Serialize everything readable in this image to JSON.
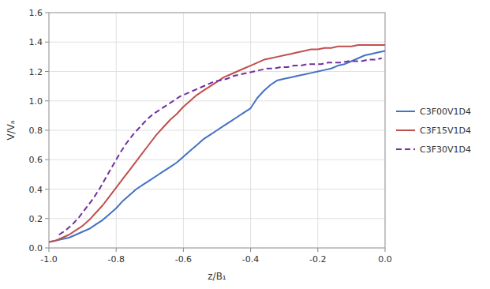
{
  "chart_data": {
    "type": "line",
    "xlabel": "z/B₁",
    "ylabel": "V/Vₐ",
    "xlim": [
      -1.0,
      0.0
    ],
    "ylim": [
      0.0,
      1.6
    ],
    "xticks": [
      {
        "value": -1.0,
        "label": "-1.0"
      },
      -0.8,
      -0.6,
      -0.4,
      -0.2,
      {
        "value": 0.0,
        "label": "0.0"
      }
    ],
    "yticks": [
      {
        "value": 0.0,
        "label": "0.0"
      },
      0.2,
      0.4,
      0.6,
      0.8,
      {
        "value": 1.0,
        "label": "1.0"
      },
      1.2,
      1.4,
      1.6
    ],
    "grid": true,
    "legend": "right",
    "series": [
      {
        "name": "C3F00V1D4",
        "color": "#4472C4",
        "line_style": "solid",
        "x": [
          -1.0,
          -0.98,
          -0.96,
          -0.94,
          -0.92,
          -0.9,
          -0.88,
          -0.86,
          -0.84,
          -0.82,
          -0.8,
          -0.78,
          -0.76,
          -0.74,
          -0.72,
          -0.7,
          -0.68,
          -0.66,
          -0.64,
          -0.62,
          -0.6,
          -0.58,
          -0.56,
          -0.54,
          -0.52,
          -0.5,
          -0.48,
          -0.46,
          -0.44,
          -0.42,
          -0.4,
          -0.38,
          -0.36,
          -0.34,
          -0.32,
          -0.3,
          -0.28,
          -0.26,
          -0.24,
          -0.22,
          -0.2,
          -0.18,
          -0.16,
          -0.14,
          -0.12,
          -0.1,
          -0.08,
          -0.06,
          -0.04,
          -0.02,
          0.0
        ],
        "values": [
          0.04,
          0.05,
          0.06,
          0.07,
          0.09,
          0.11,
          0.13,
          0.16,
          0.19,
          0.23,
          0.27,
          0.32,
          0.36,
          0.4,
          0.43,
          0.46,
          0.49,
          0.52,
          0.55,
          0.58,
          0.62,
          0.66,
          0.7,
          0.74,
          0.77,
          0.8,
          0.83,
          0.86,
          0.89,
          0.92,
          0.95,
          1.02,
          1.07,
          1.11,
          1.14,
          1.15,
          1.16,
          1.17,
          1.18,
          1.19,
          1.2,
          1.21,
          1.22,
          1.24,
          1.25,
          1.27,
          1.29,
          1.31,
          1.32,
          1.33,
          1.34
        ]
      },
      {
        "name": "C3F15V1D4",
        "color": "#C0504D",
        "line_style": "solid",
        "x": [
          -1.0,
          -0.98,
          -0.96,
          -0.94,
          -0.92,
          -0.9,
          -0.88,
          -0.86,
          -0.84,
          -0.82,
          -0.8,
          -0.78,
          -0.76,
          -0.74,
          -0.72,
          -0.7,
          -0.68,
          -0.66,
          -0.64,
          -0.62,
          -0.6,
          -0.58,
          -0.56,
          -0.54,
          -0.52,
          -0.5,
          -0.48,
          -0.46,
          -0.44,
          -0.42,
          -0.4,
          -0.38,
          -0.36,
          -0.34,
          -0.32,
          -0.3,
          -0.28,
          -0.26,
          -0.24,
          -0.22,
          -0.2,
          -0.18,
          -0.16,
          -0.14,
          -0.12,
          -0.1,
          -0.08,
          -0.06,
          -0.04,
          -0.02,
          0.0
        ],
        "values": [
          0.04,
          0.05,
          0.07,
          0.09,
          0.12,
          0.15,
          0.19,
          0.24,
          0.29,
          0.35,
          0.41,
          0.47,
          0.53,
          0.59,
          0.65,
          0.71,
          0.77,
          0.82,
          0.87,
          0.91,
          0.96,
          1.0,
          1.04,
          1.07,
          1.1,
          1.13,
          1.16,
          1.18,
          1.2,
          1.22,
          1.24,
          1.26,
          1.28,
          1.29,
          1.3,
          1.31,
          1.32,
          1.33,
          1.34,
          1.35,
          1.35,
          1.36,
          1.36,
          1.37,
          1.37,
          1.37,
          1.38,
          1.38,
          1.38,
          1.38,
          1.38
        ]
      },
      {
        "name": "C3F30V1D4",
        "color": "#7030A0",
        "line_style": "dashed",
        "x": [
          -0.97,
          -0.95,
          -0.93,
          -0.91,
          -0.89,
          -0.87,
          -0.85,
          -0.83,
          -0.81,
          -0.79,
          -0.77,
          -0.75,
          -0.73,
          -0.71,
          -0.69,
          -0.67,
          -0.65,
          -0.63,
          -0.61,
          -0.59,
          -0.57,
          -0.55,
          -0.53,
          -0.51,
          -0.49,
          -0.47,
          -0.45,
          -0.43,
          -0.41,
          -0.39,
          -0.37,
          -0.35,
          -0.33,
          -0.31,
          -0.29,
          -0.27,
          -0.25,
          -0.23,
          -0.21,
          -0.19,
          -0.17,
          -0.15,
          -0.13,
          -0.11,
          -0.09,
          -0.07,
          -0.05,
          -0.03,
          -0.01
        ],
        "values": [
          0.09,
          0.12,
          0.16,
          0.21,
          0.27,
          0.33,
          0.4,
          0.48,
          0.56,
          0.64,
          0.71,
          0.77,
          0.82,
          0.87,
          0.91,
          0.94,
          0.97,
          1.0,
          1.03,
          1.05,
          1.07,
          1.09,
          1.11,
          1.13,
          1.14,
          1.15,
          1.17,
          1.18,
          1.19,
          1.2,
          1.21,
          1.22,
          1.22,
          1.23,
          1.23,
          1.24,
          1.24,
          1.25,
          1.25,
          1.25,
          1.26,
          1.26,
          1.26,
          1.27,
          1.27,
          1.27,
          1.28,
          1.28,
          1.29
        ]
      }
    ]
  }
}
